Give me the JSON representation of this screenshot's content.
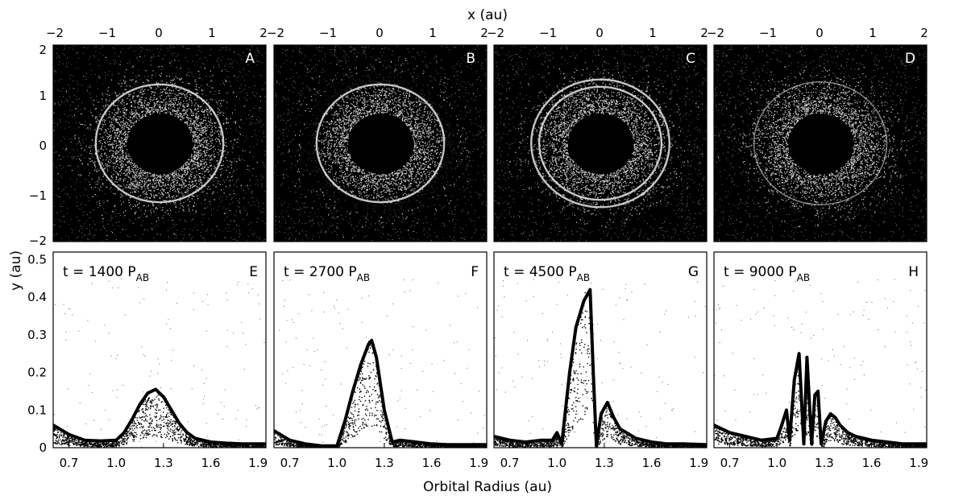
{
  "figure": {
    "top_axis_label": "x (au)",
    "left_axis_label": "y (au)",
    "bottom_axis_label": "Orbital Radius (au)"
  },
  "chart_data": [
    {
      "type": "scatter",
      "panel": "A",
      "xlim": [
        -2,
        2
      ],
      "ylim": [
        -2,
        2
      ],
      "x_ticks": [
        "−2",
        "−1",
        "0",
        "1",
        "2"
      ],
      "y_ticks": [
        "2",
        "1",
        "0",
        "−1",
        "−2"
      ],
      "background": "#000000",
      "rings": [
        {
          "radius": 0.6,
          "kind": "central-hole"
        },
        {
          "radius": 1.2,
          "kind": "bright-narrow"
        },
        {
          "radius": 0.95,
          "kind": "diffuse-disc"
        }
      ]
    },
    {
      "type": "scatter",
      "panel": "B",
      "xlim": [
        -2,
        2
      ],
      "ylim": [
        -2,
        2
      ],
      "x_ticks": [
        "−2",
        "−1",
        "0",
        "1",
        "2"
      ],
      "background": "#000000",
      "rings": [
        {
          "radius": 0.6,
          "kind": "central-hole"
        },
        {
          "radius": 1.2,
          "kind": "bright-narrow"
        },
        {
          "radius": 1.35,
          "kind": "dark-gap"
        }
      ]
    },
    {
      "type": "scatter",
      "panel": "C",
      "xlim": [
        -2,
        2
      ],
      "ylim": [
        -2,
        2
      ],
      "x_ticks": [
        "−2",
        "−1",
        "0",
        "1",
        "2"
      ],
      "background": "#000000",
      "rings": [
        {
          "radius": 0.6,
          "kind": "central-hole"
        },
        {
          "radius": 1.15,
          "kind": "bright-narrow"
        },
        {
          "radius": 1.3,
          "kind": "bright-narrow"
        }
      ]
    },
    {
      "type": "scatter",
      "panel": "D",
      "xlim": [
        -2,
        2
      ],
      "ylim": [
        -2,
        2
      ],
      "x_ticks": [
        "−2",
        "−1",
        "0",
        "1",
        "2"
      ],
      "background": "#000000",
      "rings": [
        {
          "radius": 0.6,
          "kind": "central-hole"
        },
        {
          "radius": 1.25,
          "kind": "faint-narrow"
        }
      ]
    },
    {
      "type": "scatter",
      "panel": "E",
      "time_label": "t = 1400 P",
      "time_sub": "AB",
      "xlim": [
        0.6,
        1.95
      ],
      "ylim": [
        0,
        0.52
      ],
      "x_ticks": [
        "0.7",
        "1.0",
        "1.3",
        "1.6",
        "1.9"
      ],
      "y_ticks": [
        "0",
        "0.1",
        "0.2",
        "0.3",
        "0.4",
        "0.5"
      ],
      "x": [
        0.6,
        0.7,
        0.8,
        0.9,
        1.0,
        1.05,
        1.1,
        1.15,
        1.2,
        1.25,
        1.3,
        1.35,
        1.4,
        1.45,
        1.5,
        1.6,
        1.7,
        1.8,
        1.95
      ],
      "y": [
        0.06,
        0.035,
        0.02,
        0.018,
        0.02,
        0.04,
        0.075,
        0.115,
        0.145,
        0.155,
        0.135,
        0.1,
        0.065,
        0.04,
        0.025,
        0.015,
        0.012,
        0.01,
        0.01
      ]
    },
    {
      "type": "scatter",
      "panel": "F",
      "time_label": "t = 2700 P",
      "time_sub": "AB",
      "xlim": [
        0.6,
        1.95
      ],
      "ylim": [
        0,
        0.52
      ],
      "x_ticks": [
        "0.7",
        "1.0",
        "1.3",
        "1.6",
        "1.9"
      ],
      "x": [
        0.6,
        0.7,
        0.8,
        0.9,
        1.0,
        1.05,
        1.1,
        1.15,
        1.2,
        1.22,
        1.25,
        1.3,
        1.35,
        1.4,
        1.5,
        1.6,
        1.7,
        1.8,
        1.95
      ],
      "y": [
        0.045,
        0.02,
        0.01,
        0.005,
        0.005,
        0.07,
        0.15,
        0.22,
        0.275,
        0.285,
        0.24,
        0.1,
        0.015,
        0.02,
        0.015,
        0.01,
        0.008,
        0.008,
        0.008
      ]
    },
    {
      "type": "scatter",
      "panel": "G",
      "time_label": "t = 4500 P",
      "time_sub": "AB",
      "xlim": [
        0.6,
        1.95
      ],
      "ylim": [
        0,
        0.52
      ],
      "x_ticks": [
        "0.7",
        "1.0",
        "1.3",
        "1.6",
        "1.9"
      ],
      "x": [
        0.6,
        0.7,
        0.8,
        0.9,
        0.97,
        1.0,
        1.03,
        1.08,
        1.12,
        1.17,
        1.21,
        1.23,
        1.25,
        1.28,
        1.32,
        1.36,
        1.4,
        1.5,
        1.6,
        1.7,
        1.8,
        1.95
      ],
      "y": [
        0.03,
        0.02,
        0.015,
        0.02,
        0.02,
        0.04,
        0.01,
        0.2,
        0.32,
        0.39,
        0.42,
        0.2,
        0.005,
        0.09,
        0.12,
        0.08,
        0.05,
        0.025,
        0.015,
        0.01,
        0.01,
        0.008
      ]
    },
    {
      "type": "scatter",
      "panel": "H",
      "time_label": "t = 9000 P",
      "time_sub": "AB",
      "xlim": [
        0.6,
        1.95
      ],
      "ylim": [
        0,
        0.52
      ],
      "x_ticks": [
        "0.7",
        "1.0",
        "1.3",
        "1.6",
        "1.9"
      ],
      "x": [
        0.6,
        0.7,
        0.8,
        0.9,
        1.0,
        1.03,
        1.06,
        1.08,
        1.11,
        1.14,
        1.17,
        1.19,
        1.22,
        1.24,
        1.26,
        1.28,
        1.31,
        1.34,
        1.37,
        1.4,
        1.45,
        1.5,
        1.6,
        1.7,
        1.8,
        1.95
      ],
      "y": [
        0.06,
        0.04,
        0.03,
        0.02,
        0.025,
        0.06,
        0.1,
        0.02,
        0.18,
        0.25,
        0.01,
        0.24,
        0.01,
        0.14,
        0.15,
        0.01,
        0.07,
        0.09,
        0.08,
        0.06,
        0.04,
        0.03,
        0.02,
        0.015,
        0.01,
        0.01
      ]
    }
  ]
}
